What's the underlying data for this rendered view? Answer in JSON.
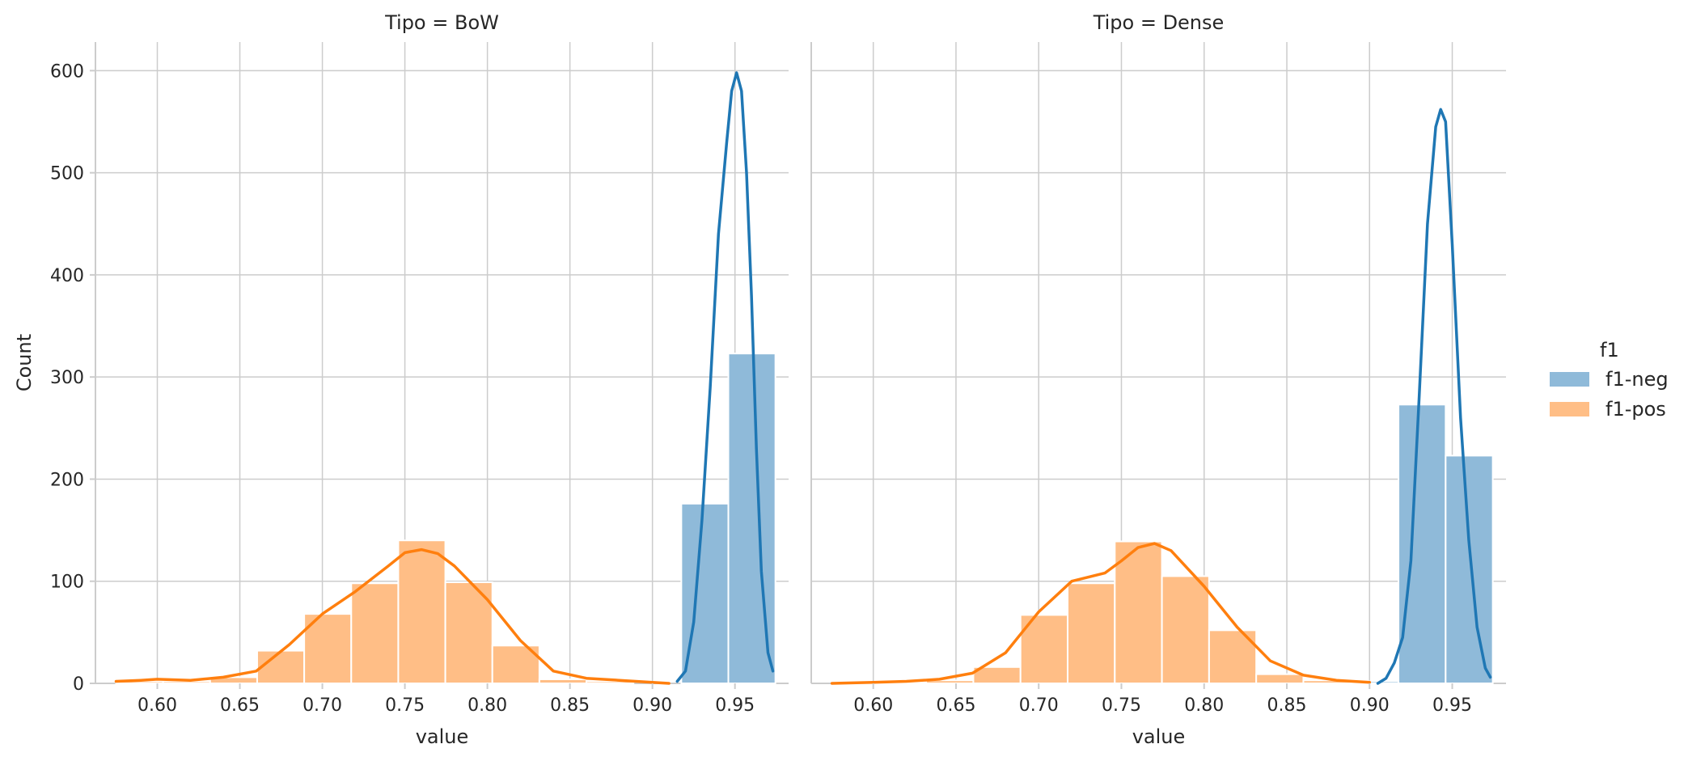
{
  "chart_data": {
    "type": "histogram",
    "figure_type": "facet-histogram-with-kde",
    "legend": {
      "title": "f1",
      "placement": "right",
      "entries": [
        {
          "label": "f1-neg",
          "color": "#1f77b4",
          "fill": "#8fbad9"
        },
        {
          "label": "f1-pos",
          "color": "#ff7f0e",
          "fill": "#ffbe86"
        }
      ]
    },
    "ylabel": "Count",
    "yticks": [
      "0",
      "100",
      "200",
      "300",
      "400",
      "500",
      "600"
    ],
    "ylim": [
      0,
      628
    ],
    "xlim": [
      0.5625,
      0.9825
    ],
    "grid": true,
    "panels": [
      {
        "title": "Tipo = BoW",
        "xlabel": "value",
        "xticks": [
          "0.60",
          "0.65",
          "0.70",
          "0.75",
          "0.80",
          "0.85",
          "0.90",
          "0.95"
        ],
        "series": [
          {
            "name": "f1-pos",
            "bins": [
              {
                "x0": 0.575,
                "x1": 0.6035,
                "count": 2
              },
              {
                "x0": 0.6035,
                "x1": 0.632,
                "count": 2
              },
              {
                "x0": 0.632,
                "x1": 0.6605,
                "count": 6
              },
              {
                "x0": 0.6605,
                "x1": 0.689,
                "count": 32
              },
              {
                "x0": 0.689,
                "x1": 0.7175,
                "count": 68
              },
              {
                "x0": 0.7175,
                "x1": 0.746,
                "count": 98
              },
              {
                "x0": 0.746,
                "x1": 0.7745,
                "count": 140
              },
              {
                "x0": 0.7745,
                "x1": 0.803,
                "count": 99
              },
              {
                "x0": 0.803,
                "x1": 0.8315,
                "count": 37
              },
              {
                "x0": 0.8315,
                "x1": 0.86,
                "count": 4
              },
              {
                "x0": 0.86,
                "x1": 0.8885,
                "count": 2
              }
            ],
            "kde": {
              "x": [
                0.575,
                0.59,
                0.6,
                0.62,
                0.64,
                0.66,
                0.68,
                0.7,
                0.72,
                0.74,
                0.75,
                0.76,
                0.77,
                0.78,
                0.8,
                0.82,
                0.84,
                0.86,
                0.88,
                0.9,
                0.91
              ],
              "y": [
                2,
                3,
                4,
                3,
                6,
                12,
                38,
                68,
                90,
                115,
                128,
                131,
                127,
                115,
                82,
                42,
                12,
                5,
                3,
                1,
                0
              ]
            }
          },
          {
            "name": "f1-neg",
            "bins": [
              {
                "x0": 0.9175,
                "x1": 0.946,
                "count": 176
              },
              {
                "x0": 0.946,
                "x1": 0.9745,
                "count": 323
              }
            ],
            "kde": {
              "x": [
                0.915,
                0.92,
                0.925,
                0.93,
                0.935,
                0.94,
                0.945,
                0.948,
                0.951,
                0.954,
                0.957,
                0.96,
                0.963,
                0.966,
                0.97,
                0.973
              ],
              "y": [
                2,
                12,
                60,
                160,
                290,
                440,
                530,
                580,
                598,
                580,
                500,
                380,
                230,
                110,
                30,
                12
              ]
            }
          }
        ]
      },
      {
        "title": "Tipo = Dense",
        "xlabel": "value",
        "xticks": [
          "0.60",
          "0.65",
          "0.70",
          "0.75",
          "0.80",
          "0.85",
          "0.90",
          "0.95"
        ],
        "series": [
          {
            "name": "f1-pos",
            "bins": [
              {
                "x0": 0.575,
                "x1": 0.6035,
                "count": 1
              },
              {
                "x0": 0.6035,
                "x1": 0.632,
                "count": 1
              },
              {
                "x0": 0.632,
                "x1": 0.6605,
                "count": 3
              },
              {
                "x0": 0.6605,
                "x1": 0.689,
                "count": 16
              },
              {
                "x0": 0.689,
                "x1": 0.7175,
                "count": 67
              },
              {
                "x0": 0.7175,
                "x1": 0.746,
                "count": 98
              },
              {
                "x0": 0.746,
                "x1": 0.7745,
                "count": 139
              },
              {
                "x0": 0.7745,
                "x1": 0.803,
                "count": 105
              },
              {
                "x0": 0.803,
                "x1": 0.8315,
                "count": 52
              },
              {
                "x0": 0.8315,
                "x1": 0.86,
                "count": 9
              },
              {
                "x0": 0.86,
                "x1": 0.8885,
                "count": 3
              }
            ],
            "kde": {
              "x": [
                0.575,
                0.6,
                0.62,
                0.64,
                0.66,
                0.68,
                0.7,
                0.72,
                0.74,
                0.75,
                0.76,
                0.77,
                0.78,
                0.8,
                0.82,
                0.84,
                0.86,
                0.88,
                0.9
              ],
              "y": [
                0,
                1,
                2,
                4,
                10,
                30,
                70,
                100,
                108,
                120,
                133,
                137,
                130,
                95,
                55,
                22,
                8,
                3,
                1
              ]
            }
          },
          {
            "name": "f1-neg",
            "bins": [
              {
                "x0": 0.889,
                "x1": 0.9175,
                "count": 2
              },
              {
                "x0": 0.9175,
                "x1": 0.946,
                "count": 273
              },
              {
                "x0": 0.946,
                "x1": 0.9745,
                "count": 223
              }
            ],
            "kde": {
              "x": [
                0.905,
                0.91,
                0.915,
                0.92,
                0.925,
                0.93,
                0.935,
                0.94,
                0.943,
                0.946,
                0.95,
                0.955,
                0.96,
                0.965,
                0.97,
                0.973
              ],
              "y": [
                0,
                5,
                20,
                45,
                120,
                280,
                450,
                545,
                562,
                550,
                430,
                260,
                140,
                55,
                15,
                6
              ]
            }
          }
        ]
      }
    ]
  }
}
